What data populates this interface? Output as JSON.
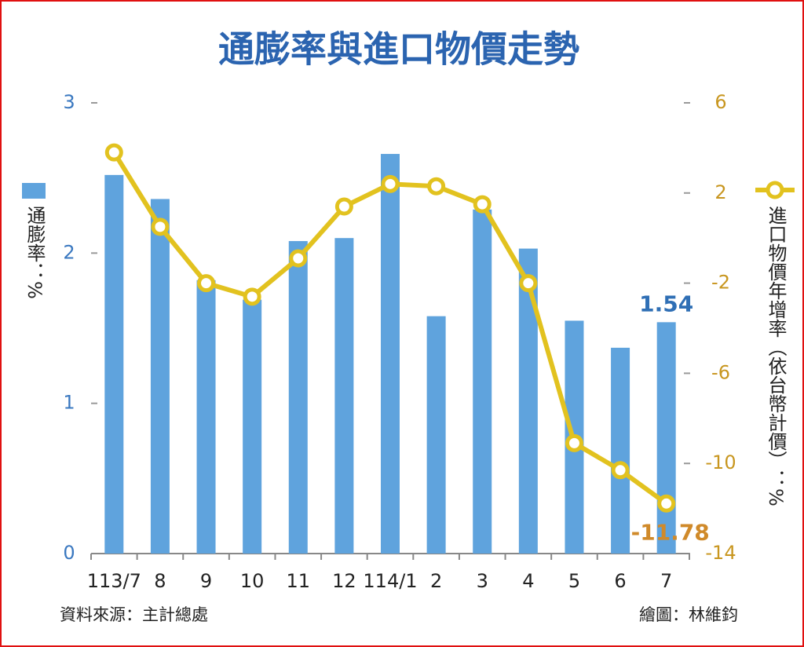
{
  "chart_data": {
    "type": "combo",
    "title": "通膨率與進口物價走勢",
    "categories": [
      "113/7",
      "8",
      "9",
      "10",
      "11",
      "12",
      "114/1",
      "2",
      "3",
      "4",
      "5",
      "6",
      "7"
    ],
    "series": [
      {
        "name": "通膨率：%",
        "type": "bar",
        "color": "#5fa3dd",
        "axis": "y",
        "values": [
          2.52,
          2.36,
          1.82,
          1.69,
          2.08,
          2.1,
          2.66,
          1.58,
          2.29,
          2.03,
          1.55,
          1.37,
          1.54
        ]
      },
      {
        "name": "進口物價年增率（依台幣計價）：%",
        "type": "line",
        "color": "#e2c21f",
        "axis": "y2",
        "values": [
          3.8,
          0.5,
          -2.0,
          -2.6,
          -0.9,
          1.4,
          2.4,
          2.3,
          1.5,
          -2.0,
          -9.1,
          -10.3,
          -11.78
        ]
      }
    ],
    "ylim": [
      0,
      3
    ],
    "yticks": [
      0,
      1,
      2,
      3
    ],
    "y2lim": [
      -14,
      6
    ],
    "y2ticks": [
      -14,
      -10,
      -6,
      -2,
      2,
      6
    ],
    "source": "資料來源：主計總處",
    "credit": "繪圖：林維鈞"
  }
}
